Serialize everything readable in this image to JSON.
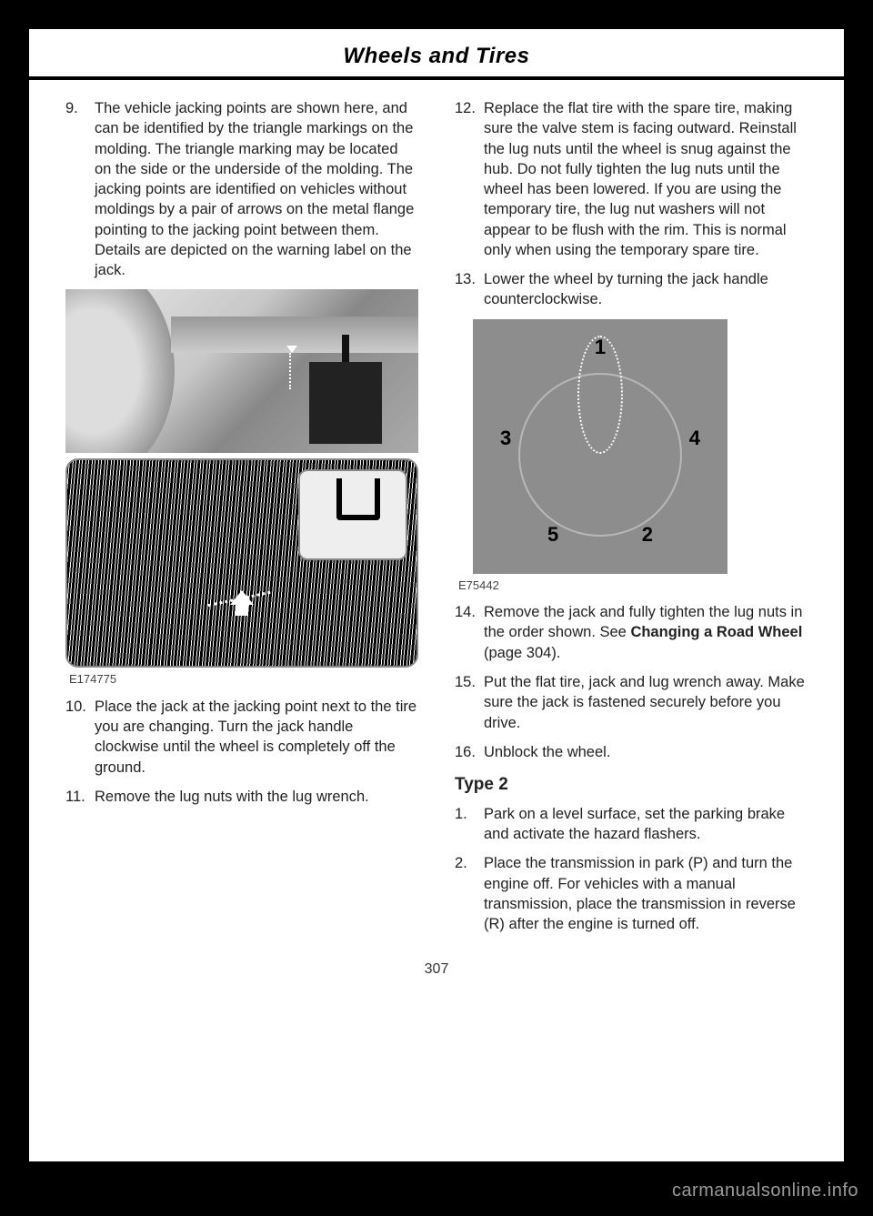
{
  "header": {
    "title": "Wheels and Tires"
  },
  "left": {
    "items": [
      {
        "num": "9.",
        "text": "The vehicle jacking points are shown here, and can be identified by the triangle markings on the molding. The triangle marking may be located on the side or the underside of the molding. The jacking points are identified on vehicles without moldings by a pair of arrows on the metal flange pointing to the jacking point between them. Details are depicted on the warning label on the jack."
      }
    ],
    "fig1_caption": "E174775",
    "items2": [
      {
        "num": "10.",
        "text": "Place the jack at the jacking point next to the tire you are changing. Turn the jack handle clockwise until the wheel is completely off the ground."
      },
      {
        "num": "11.",
        "text": "Remove the lug nuts with the lug wrench."
      }
    ]
  },
  "right": {
    "items": [
      {
        "num": "12.",
        "text": "Replace the flat tire with the spare tire, making sure the valve stem is facing outward. Reinstall the lug nuts until the wheel is snug against the hub. Do not fully tighten the lug nuts until the wheel has been lowered. If you are using the temporary tire, the lug nut washers will not appear to be flush with the rim. This is normal only when using the temporary spare tire."
      },
      {
        "num": "13.",
        "text": "Lower the wheel by turning the jack handle counterclockwise."
      }
    ],
    "fig2": {
      "caption": "E75442",
      "labels": {
        "n1": "1",
        "n2": "2",
        "n3": "3",
        "n4": "4",
        "n5": "5"
      }
    },
    "items2": [
      {
        "num": "14.",
        "pre": "Remove the jack and fully tighten the lug nuts in the order shown.  See ",
        "bold": "Changing a Road Wheel",
        "post": " (page 304)."
      },
      {
        "num": "15.",
        "text": "Put the flat tire, jack and lug wrench away. Make sure the jack is fastened securely before you drive."
      },
      {
        "num": "16.",
        "text": "Unblock the wheel."
      }
    ],
    "subhead": "Type 2",
    "items3": [
      {
        "num": "1.",
        "text": "Park on a level surface, set the parking brake and activate the hazard flashers."
      },
      {
        "num": "2.",
        "text": "Place the transmission in park (P) and turn the engine off. For vehicles with a manual transmission, place the transmission in reverse (R) after the engine is turned off."
      }
    ]
  },
  "page_number": "307",
  "watermark": "carmanualsonline.info"
}
